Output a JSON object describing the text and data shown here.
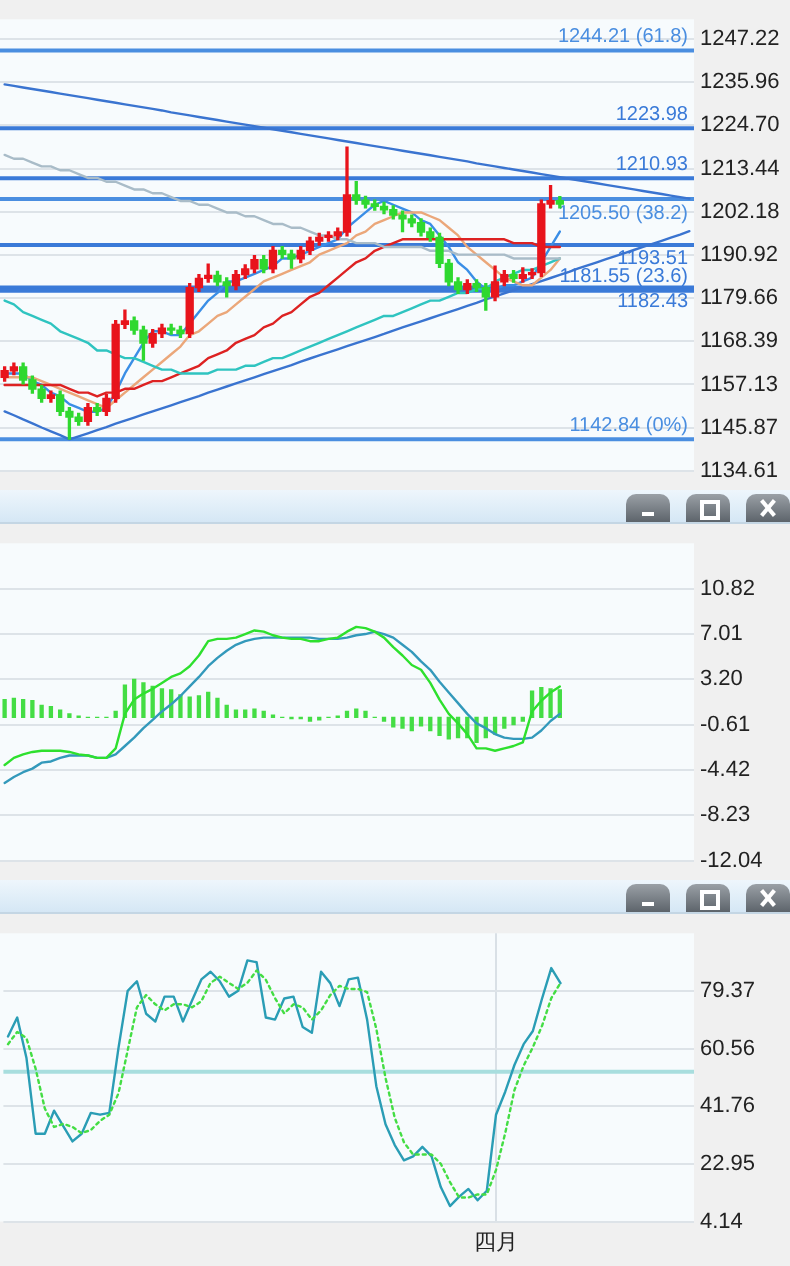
{
  "chart_data": [
    {
      "type": "candlestick",
      "tick_labels": "y",
      "grid": "y",
      "marker": "none",
      "categories": [
        null,
        null,
        null,
        null,
        null,
        null,
        null,
        null,
        null,
        null,
        null,
        null,
        null,
        null,
        null,
        null,
        null,
        null,
        null,
        null,
        null,
        null,
        null,
        null,
        null,
        null,
        null,
        null,
        null,
        null,
        null,
        null,
        null,
        null,
        null,
        null,
        null,
        null,
        null,
        null,
        null,
        null,
        null,
        null,
        null,
        null,
        null,
        null,
        null,
        null,
        null,
        null,
        null,
        null,
        null,
        null,
        null,
        null,
        null,
        null,
        null,
        null,
        null,
        null,
        null,
        null,
        null,
        null,
        null,
        null,
        null,
        null,
        null,
        null,
        null
      ],
      "ylim": [
        1134.61,
        1252.4
      ],
      "yticks": [
        1247.22,
        1235.96,
        {
          "value": 1224.7,
          "label": "1224.70"
        },
        1213.44,
        1202.18,
        1190.92,
        1179.66,
        1168.39,
        1157.13,
        1145.87,
        1134.61
      ],
      "ohlc": [
        [
          1159.0,
          1161.7,
          1158.0,
          1160.7
        ],
        [
          1160.7,
          1162.7,
          1159.7,
          1161.7
        ],
        [
          1161.7,
          1162.7,
          1157.3,
          1158.3
        ],
        [
          1158.3,
          1159.3,
          1154.9,
          1155.9
        ],
        [
          1155.9,
          1156.9,
          1152.5,
          1153.5
        ],
        [
          1153.5,
          1155.4,
          1152.5,
          1154.4
        ],
        [
          1154.4,
          1155.4,
          1149.1,
          1150.1
        ],
        [
          1150.1,
          1151.1,
          1142.9,
          1148.6
        ],
        [
          1148.6,
          1149.6,
          1146.5,
          1147.5
        ],
        [
          1147.5,
          1152.1,
          1146.5,
          1151.1
        ],
        [
          1151.1,
          1152.1,
          1149.1,
          1150.1
        ],
        [
          1150.1,
          1154.5,
          1149.1,
          1153.5
        ],
        [
          1153.5,
          1173.8,
          1152.5,
          1172.8
        ],
        [
          1172.8,
          1176.5,
          1171.8,
          1173.7
        ],
        [
          1173.7,
          1174.7,
          1170.3,
          1171.3
        ],
        [
          1171.3,
          1172.3,
          1163.5,
          1167.9
        ],
        [
          1167.9,
          1171.4,
          1166.9,
          1170.4
        ],
        [
          1170.4,
          1172.8,
          1169.4,
          1171.8
        ],
        [
          1171.8,
          1172.8,
          1170.3,
          1171.3
        ],
        [
          1171.3,
          1172.3,
          1169.4,
          1170.4
        ],
        [
          1170.4,
          1183.4,
          1169.4,
          1182.4
        ],
        [
          1182.4,
          1185.8,
          1181.4,
          1184.8
        ],
        [
          1184.8,
          1188.5,
          1183.8,
          1185.6
        ],
        [
          1185.6,
          1186.6,
          1182.9,
          1183.9
        ],
        [
          1183.9,
          1184.9,
          1180.0,
          1182.9
        ],
        [
          1182.9,
          1186.8,
          1181.9,
          1185.8
        ],
        [
          1185.8,
          1188.3,
          1184.8,
          1187.3
        ],
        [
          1187.3,
          1190.7,
          1186.3,
          1189.7
        ],
        [
          1189.7,
          1190.7,
          1186.3,
          1187.3
        ],
        [
          1187.3,
          1193.1,
          1186.3,
          1192.1
        ],
        [
          1192.1,
          1193.1,
          1190.1,
          1191.1
        ],
        [
          1191.1,
          1192.1,
          1187.5,
          1189.9
        ],
        [
          1189.9,
          1193.1,
          1188.9,
          1192.1
        ],
        [
          1192.1,
          1195.5,
          1191.1,
          1194.5
        ],
        [
          1194.5,
          1196.5,
          1193.5,
          1195.5
        ],
        [
          1195.5,
          1196.9,
          1194.5,
          1195.9
        ],
        [
          1195.9,
          1197.9,
          1194.9,
          1196.9
        ],
        [
          1196.9,
          1219.0,
          1195.9,
          1206.6
        ],
        [
          1206.6,
          1210.0,
          1204.2,
          1205.2
        ],
        [
          1205.2,
          1206.2,
          1203.2,
          1204.2
        ],
        [
          1204.2,
          1205.2,
          1202.6,
          1203.6
        ],
        [
          1203.6,
          1204.6,
          1201.7,
          1202.7
        ],
        [
          1202.7,
          1203.7,
          1200.3,
          1201.3
        ],
        [
          1201.3,
          1202.3,
          1197.0,
          1200.3
        ],
        [
          1200.3,
          1201.3,
          1198.3,
          1199.3
        ],
        [
          1199.3,
          1200.3,
          1195.9,
          1196.9
        ],
        [
          1196.9,
          1197.9,
          1194.5,
          1195.5
        ],
        [
          1195.5,
          1196.5,
          1187.7,
          1188.7
        ],
        [
          1188.7,
          1189.7,
          1182.9,
          1183.9
        ],
        [
          1183.9,
          1184.9,
          1180.9,
          1181.9
        ],
        [
          1181.9,
          1184.4,
          1180.9,
          1183.4
        ],
        [
          1183.4,
          1184.4,
          1181.4,
          1182.4
        ],
        [
          1182.4,
          1183.4,
          1176.5,
          1180.0
        ],
        [
          1180.0,
          1188.0,
          1179.0,
          1183.9
        ],
        [
          1183.9,
          1186.8,
          1182.9,
          1185.8
        ],
        [
          1185.8,
          1186.8,
          1183.8,
          1184.8
        ],
        [
          1184.8,
          1187.5,
          1183.8,
          1185.8
        ],
        [
          1185.8,
          1187.3,
          1184.8,
          1186.3
        ],
        [
          1186.3,
          1205.2,
          1185.3,
          1204.2
        ],
        [
          1204.2,
          1209.0,
          1203.2,
          1205.1
        ],
        [
          1205.1,
          1206.1,
          1203.2,
          1204.2
        ],
        null,
        null,
        null,
        null,
        null,
        null,
        null,
        null,
        null,
        null,
        null,
        null,
        null,
        null
      ],
      "colors": [
        "#e8141c",
        "#e8141c",
        "#2fd82f",
        "#2fd82f",
        "#2fd82f",
        "#e8141c",
        "#2fd82f",
        "#2fd82f",
        "#2fd82f",
        "#e8141c",
        "#2fd82f",
        "#e8141c",
        "#e8141c",
        "#e8141c",
        "#2fd82f",
        "#2fd82f",
        "#e8141c",
        "#e8141c",
        "#2fd82f",
        "#2fd82f",
        "#e8141c",
        "#e8141c",
        "#e8141c",
        "#2fd82f",
        "#2fd82f",
        "#e8141c",
        "#e8141c",
        "#e8141c",
        "#2fd82f",
        "#e8141c",
        "#2fd82f",
        "#2fd82f",
        "#e8141c",
        "#e8141c",
        "#e8141c",
        "#e8141c",
        "#e8141c",
        "#e8141c",
        "#2fd82f",
        "#2fd82f",
        "#2fd82f",
        "#2fd82f",
        "#2fd82f",
        "#2fd82f",
        "#2fd82f",
        "#2fd82f",
        "#2fd82f",
        "#2fd82f",
        "#2fd82f",
        "#2fd82f",
        "#e8141c",
        "#2fd82f",
        "#2fd82f",
        "#e8141c",
        "#e8141c",
        "#2fd82f",
        "#e8141c",
        "#e8141c",
        "#e8141c",
        "#e8141c",
        "#2fd82f",
        null,
        null,
        null,
        null,
        null,
        null,
        null,
        null,
        null,
        null,
        null,
        null,
        null,
        null
      ],
      "series": [
        {
          "type": "line",
          "color": "#a9bcc8",
          "values": [
            1217,
            1216,
            1216,
            1215,
            1214,
            1214,
            1213,
            1213,
            1212,
            1211,
            1211,
            1210,
            1210,
            1209,
            1208,
            1208,
            1207,
            1207,
            1206,
            1205,
            1205,
            1204,
            1204,
            1203,
            1202,
            1202,
            1201,
            1201,
            1200,
            1199,
            1199,
            1198,
            1198,
            1197,
            1196,
            1196,
            1195,
            1195,
            1194,
            1194,
            1194,
            1193,
            1193,
            1193,
            1193,
            1193,
            1192,
            1192,
            1192,
            1191,
            1191,
            1191,
            1191,
            1191,
            1191,
            1190,
            1190,
            1190,
            1190,
            1190,
            1190,
            null,
            null,
            null,
            null,
            null,
            null,
            null,
            null,
            null,
            null,
            null,
            null,
            null,
            null
          ]
        },
        {
          "type": "line",
          "color": "#2fc4c0",
          "values": [
            1179,
            1178,
            1176,
            1175,
            1174,
            1173,
            1171,
            1170,
            1169,
            1168,
            1166,
            1166,
            1165,
            1164,
            1164,
            1163,
            1162,
            1161,
            1161,
            1160,
            1160,
            1160,
            1160,
            1161,
            1161,
            1161,
            1162,
            1162,
            1163,
            1164,
            1164,
            1165,
            1166,
            1167,
            1168,
            1169,
            1170,
            1171,
            1172,
            1173,
            1174,
            1175,
            1175,
            1176,
            1177,
            1178,
            1179,
            1179,
            1180,
            1181,
            1181,
            1182,
            1182,
            1184,
            1185,
            1186,
            1187,
            1187,
            1188,
            1189,
            1190,
            null,
            null,
            null,
            null,
            null,
            null,
            null,
            null,
            null,
            null,
            null,
            null,
            null,
            null
          ]
        },
        {
          "type": "line",
          "color": "#dd2222",
          "values": [
            1157,
            1157,
            1157,
            1157,
            1157,
            1157,
            1157,
            1156,
            1155,
            1155,
            1154,
            1155,
            1155,
            1156,
            1156,
            1157,
            1158,
            1158,
            1159,
            1160,
            1161,
            1162,
            1164,
            1165,
            1166,
            1168,
            1169,
            1170,
            1172,
            1173,
            1175,
            1176,
            1178,
            1180,
            1181,
            1183,
            1185,
            1187,
            1189,
            1190,
            1192,
            1193,
            1194,
            1195,
            1195,
            1195,
            1195,
            1195,
            1195,
            1195,
            1195,
            1195,
            1195,
            1195,
            1195,
            1194,
            1194,
            1194,
            1193,
            1193,
            1193,
            null,
            null,
            null,
            null,
            null,
            null,
            null,
            null,
            null,
            null,
            null,
            null,
            null,
            null
          ]
        },
        {
          "type": "line",
          "color": "#eba77a",
          "values": [
            1159,
            1159,
            1159,
            1159,
            1158,
            1157,
            1156,
            1155,
            1154,
            1153,
            1152,
            1151,
            1153,
            1155,
            1157,
            1159,
            1161,
            1163,
            1165,
            1167,
            1170,
            1171,
            1173,
            1175,
            1176,
            1178,
            1180,
            1182,
            1184,
            1185,
            1186,
            1187,
            1188,
            1189,
            1191,
            1192,
            1193,
            1194,
            1196,
            1197,
            1199,
            1200,
            1201,
            1202,
            1202,
            1202,
            1201,
            1200,
            1198,
            1196,
            1193,
            1191,
            1189,
            1187,
            1185,
            1184,
            1183,
            1183,
            1185,
            1187,
            1190,
            null,
            null,
            null,
            null,
            null,
            null,
            null,
            null,
            null,
            null,
            null,
            null,
            null,
            null
          ]
        },
        {
          "type": "line",
          "color": "#3a8ee6",
          "values": [
            1160,
            1160,
            1160,
            1158,
            1157,
            1155,
            1154,
            1152,
            1151,
            1150,
            1150,
            1151,
            1155,
            1160,
            1164,
            1168,
            1171,
            1171,
            1170,
            1170,
            1173,
            1176,
            1179,
            1181,
            1184,
            1184,
            1185,
            1186,
            1187,
            1188,
            1190,
            1190,
            1191,
            1192,
            1193,
            1194,
            1195,
            1198,
            1200,
            1202,
            1204,
            1205,
            1204,
            1203,
            1202,
            1200,
            1199,
            1196,
            1193,
            1189,
            1187,
            1184,
            1182,
            1182,
            1183,
            1183,
            1184,
            1185,
            1189,
            1193,
            1197,
            null,
            null,
            null,
            null,
            null,
            null,
            null,
            null,
            null,
            null,
            null,
            null,
            null,
            null
          ]
        },
        {
          "type": "line",
          "color": "#3a74d0",
          "values": [
            1235.4,
            1235.0,
            1234.6,
            1234.2,
            1233.8,
            1233.4,
            1233.0,
            1232.6,
            1232.2,
            1231.8,
            1231.4,
            1231.0,
            1230.6,
            1230.2,
            1229.8,
            1229.4,
            1229.0,
            1228.6,
            1228.1,
            1227.7,
            1227.3,
            1226.9,
            1226.5,
            1226.1,
            1225.7,
            1225.3,
            1224.9,
            1224.5,
            1224.1,
            1223.7,
            1223.3,
            1222.9,
            1222.5,
            1222.1,
            1221.7,
            1221.3,
            1220.9,
            1220.5,
            1220.1,
            1219.7,
            1219.3,
            1218.9,
            1218.5,
            1218.1,
            1217.7,
            1217.3,
            1216.9,
            1216.5,
            1216.1,
            1215.7,
            1215.3,
            1214.8,
            1214.4,
            1214.0,
            1213.6,
            1213.2,
            1212.8,
            1212.4,
            1212.0,
            1211.6,
            1211.2,
            1210.8,
            1210.4,
            1210.0,
            1209.6,
            1209.2,
            1208.8,
            1208.4,
            1208.0,
            1207.6,
            1207.2,
            1206.8,
            1206.4,
            1206.0,
            1205.6
          ]
        },
        {
          "type": "line",
          "color": "#3a74d0",
          "values": [
            1150.1,
            1149.1,
            1148.0,
            1147.0,
            1145.9,
            1144.9,
            1143.9,
            1142.8,
            1143.6,
            1144.4,
            1145.2,
            1146.0,
            1146.9,
            1147.7,
            1148.5,
            1149.3,
            1150.1,
            1150.9,
            1151.7,
            1152.5,
            1153.3,
            1154.1,
            1155.0,
            1155.8,
            1156.6,
            1157.4,
            1158.2,
            1159.0,
            1159.8,
            1160.6,
            1161.4,
            1162.2,
            1163.1,
            1163.9,
            1164.7,
            1165.5,
            1166.3,
            1167.1,
            1167.9,
            1168.7,
            1169.5,
            1170.3,
            1171.2,
            1172.0,
            1172.8,
            1173.6,
            1174.4,
            1175.2,
            1176.0,
            1176.8,
            1177.6,
            1178.4,
            1179.3,
            1180.1,
            1180.9,
            1181.7,
            1182.5,
            1183.3,
            1184.1,
            1184.9,
            1185.7,
            1186.5,
            1187.4,
            1188.2,
            1189.0,
            1189.8,
            1190.6,
            1191.4,
            1192.2,
            1193.0,
            1193.8,
            1194.6,
            1195.4,
            1196.2,
            1197.1
          ]
        }
      ],
      "ref_lines": [
        {
          "axis": "y",
          "value": 1244.21,
          "label": "1244.21 (61.8)",
          "color": "#4a8ee0"
        },
        {
          "axis": "y",
          "value": 1223.98,
          "label": "1223.98",
          "color": "#3a7ad8"
        },
        {
          "axis": "y",
          "value": 1210.93,
          "label": "1210.93",
          "color": "#3a7ad8"
        },
        {
          "axis": "y",
          "value": 1205.5,
          "label": "1205.50 (38.2)",
          "color": "#4a8ee0"
        },
        {
          "axis": "y",
          "value": 1193.51,
          "label": "1193.51",
          "color": "#3a7ad8"
        },
        {
          "axis": "y",
          "value": 1182.43,
          "label": "1182.43",
          "color": "#3a7ad8"
        },
        {
          "axis": "y",
          "value": 1181.55,
          "label": "1181.55 (23.6)",
          "color": "#3a7ad8"
        },
        {
          "axis": "y",
          "value": 1142.84,
          "label": "1142.84 (0%)",
          "color": "#4a8ee0"
        }
      ]
    },
    {
      "type": "line",
      "tick_labels": "y",
      "grid": "y",
      "marker": "none",
      "categories": [
        null,
        null,
        null,
        null,
        null,
        null,
        null,
        null,
        null,
        null,
        null,
        null,
        null,
        null,
        null,
        null,
        null,
        null,
        null,
        null,
        null,
        null,
        null,
        null,
        null,
        null,
        null,
        null,
        null,
        null,
        null,
        null,
        null,
        null,
        null,
        null,
        null,
        null,
        null,
        null,
        null,
        null,
        null,
        null,
        null,
        null,
        null,
        null,
        null,
        null,
        null,
        null,
        null,
        null,
        null,
        null,
        null,
        null,
        null,
        null,
        null,
        null,
        null,
        null,
        null,
        null,
        null,
        null,
        null,
        null,
        null,
        null,
        null,
        null,
        null
      ],
      "ylim": [
        -12.04,
        14.63
      ],
      "yticks": [
        10.82,
        7.01,
        {
          "value": 3.2,
          "label": "3.20"
        },
        -0.61,
        -4.42,
        -8.23,
        -12.04
      ],
      "series": [
        {
          "type": "bar",
          "color": "#44dd44",
          "values": [
            1.5,
            1.6,
            1.5,
            1.4,
            1.0,
            0.9,
            0.6,
            0.3,
            0.1,
            0.0,
            0.0,
            0.0,
            0.5,
            2.7,
            3.2,
            2.9,
            2.6,
            2.4,
            2.3,
            1.9,
            1.7,
            1.8,
            2.1,
            1.6,
            1.0,
            0.6,
            0.6,
            0.7,
            0.5,
            0.2,
            0.0,
            -0.1,
            -0.1,
            -0.3,
            -0.2,
            0.0,
            0.1,
            0.5,
            0.7,
            0.5,
            0.0,
            -0.3,
            -0.8,
            -0.9,
            -1.1,
            -0.7,
            -1.1,
            -1.5,
            -1.8,
            -1.7,
            -1.7,
            -2.1,
            -1.7,
            -1.4,
            -0.9,
            -0.6,
            -0.3,
            2.2,
            2.5,
            2.4,
            2.3,
            null,
            null,
            null,
            null,
            null,
            null,
            null,
            null,
            null,
            null,
            null,
            null,
            null,
            null
          ]
        },
        {
          "type": "line",
          "color": "#2ee02e",
          "values": [
            -4.0,
            -3.4,
            -3.1,
            -2.9,
            -2.8,
            -2.8,
            -2.8,
            -2.9,
            -3.1,
            -3.2,
            -3.4,
            -3.4,
            -2.6,
            0.3,
            1.5,
            2.0,
            2.4,
            2.9,
            3.4,
            3.7,
            4.3,
            5.2,
            6.4,
            6.6,
            6.6,
            6.7,
            7.0,
            7.3,
            7.2,
            6.9,
            6.7,
            6.6,
            6.6,
            6.4,
            6.4,
            6.6,
            6.7,
            7.2,
            7.6,
            7.5,
            7.2,
            6.7,
            5.9,
            5.2,
            4.4,
            4.0,
            2.9,
            1.5,
            0.3,
            -0.5,
            -1.4,
            -2.6,
            -2.6,
            -2.8,
            -2.6,
            -2.4,
            -2.1,
            0.5,
            1.4,
            2.1,
            2.6,
            null,
            null,
            null,
            null,
            null,
            null,
            null,
            null,
            null,
            null,
            null,
            null,
            null,
            null
          ]
        },
        {
          "type": "line",
          "color": "#3399bb",
          "values": [
            -5.5,
            -5.0,
            -4.6,
            -4.3,
            -3.8,
            -3.7,
            -3.4,
            -3.2,
            -3.2,
            -3.2,
            -3.4,
            -3.4,
            -3.1,
            -2.4,
            -1.7,
            -0.9,
            -0.2,
            0.5,
            1.1,
            1.8,
            2.6,
            3.4,
            4.3,
            5.0,
            5.6,
            6.1,
            6.4,
            6.6,
            6.7,
            6.7,
            6.7,
            6.7,
            6.7,
            6.7,
            6.6,
            6.6,
            6.6,
            6.7,
            6.9,
            7.0,
            7.2,
            7.0,
            6.7,
            6.1,
            5.5,
            4.7,
            4.0,
            3.0,
            2.1,
            1.2,
            0.3,
            -0.5,
            -0.9,
            -1.4,
            -1.7,
            -1.8,
            -1.8,
            -1.7,
            -1.1,
            -0.3,
            0.3,
            null,
            null,
            null,
            null,
            null,
            null,
            null,
            null,
            null,
            null,
            null,
            null,
            null,
            null
          ]
        }
      ]
    },
    {
      "type": "line",
      "grid": true,
      "marker": "none",
      "categories": [
        null,
        null,
        null,
        null,
        null,
        null,
        null,
        null,
        null,
        null,
        null,
        null,
        null,
        null,
        null,
        null,
        null,
        null,
        null,
        null,
        null,
        null,
        null,
        null,
        null,
        null,
        null,
        null,
        null,
        null,
        null,
        null,
        null,
        null,
        null,
        null,
        null,
        null,
        null,
        null,
        null,
        null,
        null,
        null,
        null,
        null,
        null,
        null,
        null,
        null,
        null,
        null,
        null,
        "四月",
        null,
        null,
        null,
        null,
        null,
        null,
        null,
        null,
        null,
        null,
        null,
        null,
        null,
        null,
        null,
        null,
        null,
        null,
        null,
        null,
        null
      ],
      "ylim": [
        4.14,
        98.18
      ],
      "yticks": [
        79.37,
        60.56,
        41.76,
        22.95,
        4.14
      ],
      "ref_lines": [
        {
          "axis": "y",
          "value": 53,
          "color": "#a8dede"
        }
      ],
      "series": [
        {
          "type": "line",
          "color": "#44dd44",
          "line_style": "dotted",
          "values": [
            62,
            66,
            64,
            54,
            41,
            35,
            36,
            35,
            33,
            34,
            37,
            39,
            46,
            60,
            74,
            78,
            75,
            73,
            75,
            75,
            74,
            76,
            82,
            84,
            82,
            80,
            82,
            86,
            83,
            77,
            72,
            75,
            74,
            70,
            73,
            78,
            81,
            80,
            80,
            79,
            67,
            51,
            38,
            30,
            26,
            26,
            26,
            23,
            17,
            12,
            12,
            13,
            13,
            21,
            33,
            47,
            55,
            61,
            68,
            77,
            82,
            null,
            null,
            null,
            null,
            null,
            null,
            null,
            null,
            null,
            null,
            null,
            null,
            null,
            null
          ]
        },
        {
          "type": "line",
          "color": "#2a9db5",
          "values": [
            64.5,
            70.7,
            57.6,
            32.8,
            32.8,
            40.3,
            35.3,
            30.3,
            32.8,
            39.6,
            39.0,
            39.6,
            60.8,
            79.4,
            82.5,
            71.9,
            69.4,
            77.5,
            77.5,
            69.4,
            76.3,
            83.1,
            85.6,
            82.5,
            77.5,
            79.4,
            89.3,
            88.7,
            70.7,
            70.0,
            76.9,
            77.5,
            67.6,
            65.7,
            85.6,
            81.9,
            74.4,
            83.1,
            83.7,
            70.0,
            48.3,
            35.9,
            29.1,
            24.1,
            25.4,
            28.5,
            25.4,
            15.4,
            9.2,
            12.3,
            14.8,
            11.1,
            14.2,
            39.0,
            46.5,
            55.2,
            62.0,
            66.3,
            76.9,
            86.8,
            81.9,
            null,
            null,
            null,
            null,
            null,
            null,
            null,
            null,
            null,
            null,
            null,
            null,
            null,
            null
          ]
        }
      ]
    }
  ]
}
